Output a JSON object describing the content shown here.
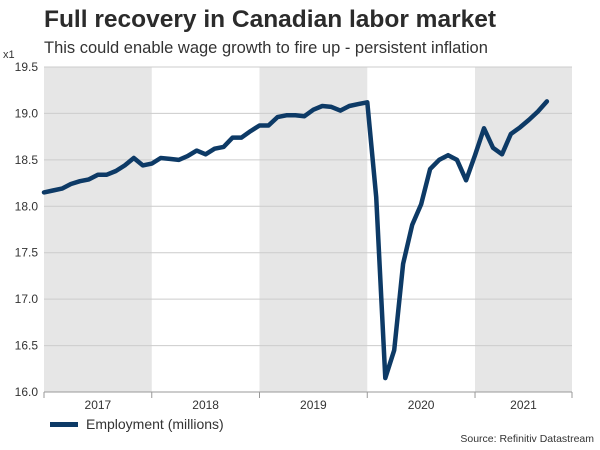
{
  "header": {
    "title": "Full recovery in Canadian labor market",
    "subtitle": "This could enable wage growth to fire up - persistent inflation"
  },
  "footer": {
    "source": "Source: Refinitiv Datastream"
  },
  "colors": {
    "line": "#0d3a66",
    "shade": "#e6e6e6",
    "grid": "#cccccc"
  },
  "chart_data": {
    "type": "line",
    "title": "Full recovery in Canadian labor market",
    "subtitle": "This could enable wage growth to fire up - persistent inflation",
    "y_multiplier_label": "x1",
    "xlabel": "",
    "ylabel": "",
    "ylim": [
      16.0,
      19.5
    ],
    "yticks": [
      "16.0",
      "16.5",
      "17.0",
      "17.5",
      "18.0",
      "18.5",
      "19.0",
      "19.5"
    ],
    "x_range": [
      2017.0,
      2021.9
    ],
    "year_labels": [
      "2017",
      "2018",
      "2019",
      "2020",
      "2021"
    ],
    "shaded_years": [
      2017,
      2019,
      2021
    ],
    "grid": "horizontal",
    "legend": {
      "position": "bottom-left",
      "entries": [
        "Employment (millions)"
      ]
    },
    "series": [
      {
        "name": "Employment (millions)",
        "x": [
          2017.0,
          2017.083,
          2017.167,
          2017.25,
          2017.333,
          2017.417,
          2017.5,
          2017.583,
          2017.667,
          2017.75,
          2017.833,
          2017.917,
          2018.0,
          2018.083,
          2018.167,
          2018.25,
          2018.333,
          2018.417,
          2018.5,
          2018.583,
          2018.667,
          2018.75,
          2018.833,
          2018.917,
          2019.0,
          2019.083,
          2019.167,
          2019.25,
          2019.333,
          2019.417,
          2019.5,
          2019.583,
          2019.667,
          2019.75,
          2019.833,
          2019.917,
          2020.0,
          2020.083,
          2020.167,
          2020.25,
          2020.333,
          2020.417,
          2020.5,
          2020.583,
          2020.667,
          2020.75,
          2020.833,
          2020.917,
          2021.0,
          2021.083,
          2021.167,
          2021.25,
          2021.333,
          2021.417,
          2021.5,
          2021.583,
          2021.667
        ],
        "values": [
          18.15,
          18.17,
          18.19,
          18.24,
          18.27,
          18.29,
          18.34,
          18.34,
          18.38,
          18.44,
          18.52,
          18.44,
          18.46,
          18.52,
          18.51,
          18.5,
          18.54,
          18.6,
          18.56,
          18.62,
          18.64,
          18.74,
          18.74,
          18.81,
          18.87,
          18.87,
          18.96,
          18.98,
          18.98,
          18.97,
          19.04,
          19.08,
          19.07,
          19.03,
          19.08,
          19.1,
          19.12,
          18.1,
          16.15,
          16.45,
          17.38,
          17.8,
          18.02,
          18.4,
          18.5,
          18.55,
          18.5,
          18.28,
          18.55,
          18.84,
          18.63,
          18.56,
          18.78,
          18.85,
          18.93,
          19.02,
          19.13
        ]
      }
    ]
  }
}
